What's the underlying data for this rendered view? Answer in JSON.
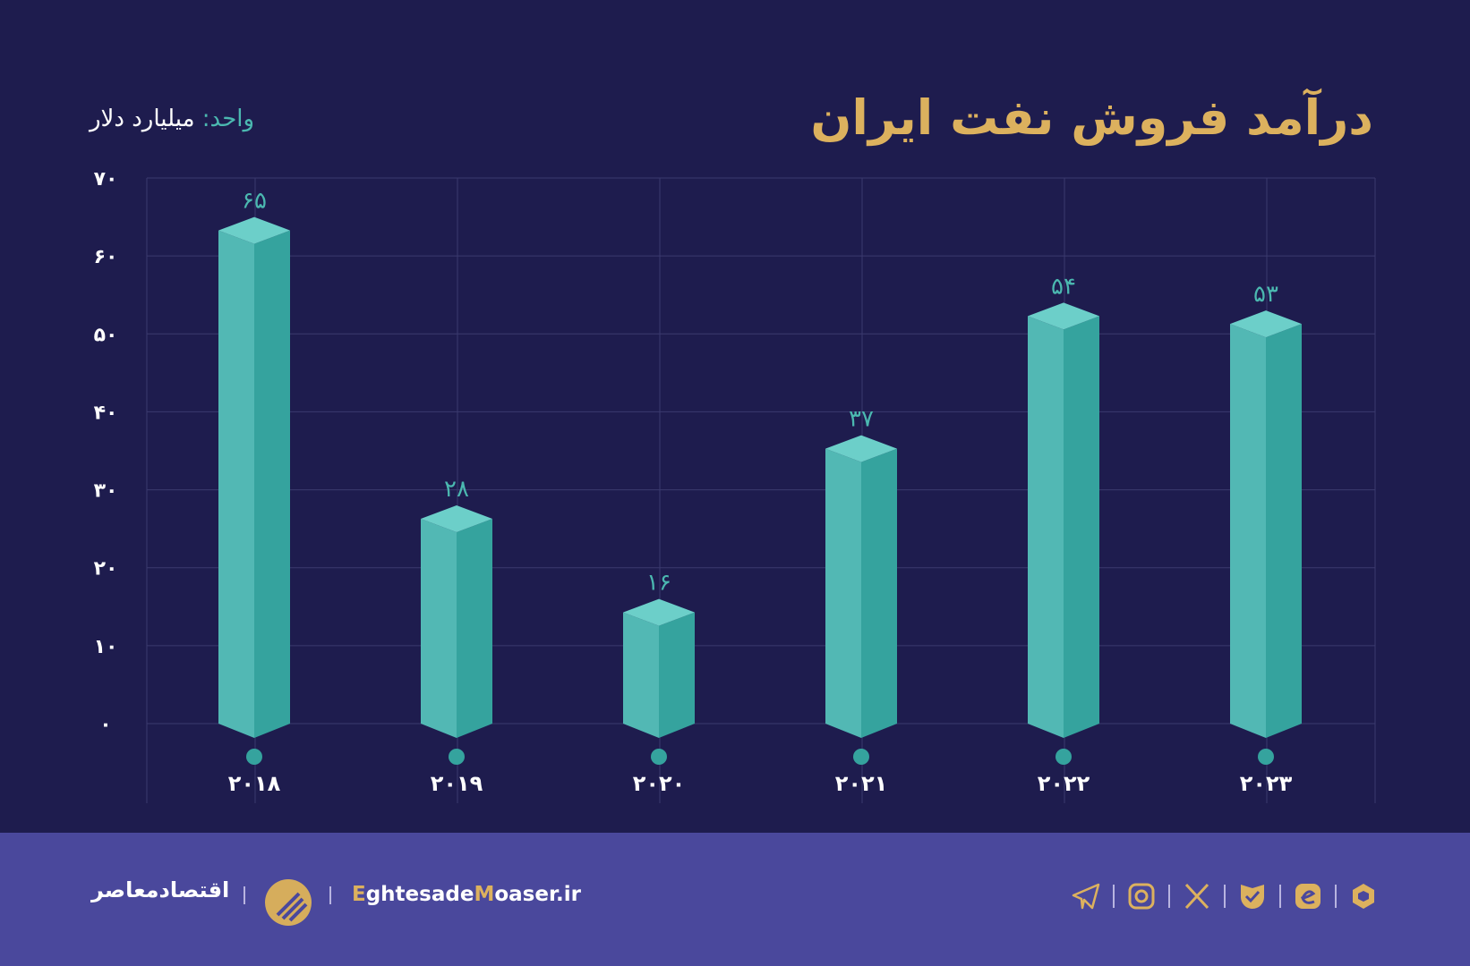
{
  "title": "درآمد فروش نفت ایران",
  "unit_key": "واحد:",
  "unit_value": "میلیارد دلار",
  "colors": {
    "background": "#1e1c4e",
    "bar_front": "#52b8b4",
    "bar_side": "#35a39e",
    "bar_top": "#6ccfc9",
    "title": "#dcb15e",
    "footer": "#4a489c"
  },
  "chart_data": {
    "type": "bar",
    "title": "درآمد فروش نفت ایران",
    "ylabel": "واحد: میلیارد دلار",
    "categories": [
      "2018",
      "2019",
      "2020",
      "2021",
      "2022",
      "2023"
    ],
    "category_labels": [
      "۲۰۱۸",
      "۲۰۱۹",
      "۲۰۲۰",
      "۲۰۲۱",
      "۲۰۲۲",
      "۲۰۲۳"
    ],
    "values": [
      65,
      28,
      16,
      37,
      54,
      53
    ],
    "value_labels": [
      "۶۵",
      "۲۸",
      "۱۶",
      "۳۷",
      "۵۴",
      "۵۳"
    ],
    "ylim": [
      0,
      70
    ],
    "yticks": [
      0,
      10,
      20,
      30,
      40,
      50,
      60,
      70
    ],
    "ytick_labels": [
      "۰",
      "۱۰",
      "۲۰",
      "۳۰",
      "۴۰",
      "۵۰",
      "۶۰",
      "۷۰"
    ],
    "grid": true
  },
  "footer": {
    "brand_fa": "اقتصادمعاصر",
    "site_e": "E",
    "site_mid": "ghtesade",
    "site_m": "M",
    "site_end": "oaser.ir",
    "icons": [
      "telegram-icon",
      "instagram-icon",
      "x-icon",
      "bale-icon",
      "eitaa-icon",
      "rubika-icon"
    ]
  }
}
